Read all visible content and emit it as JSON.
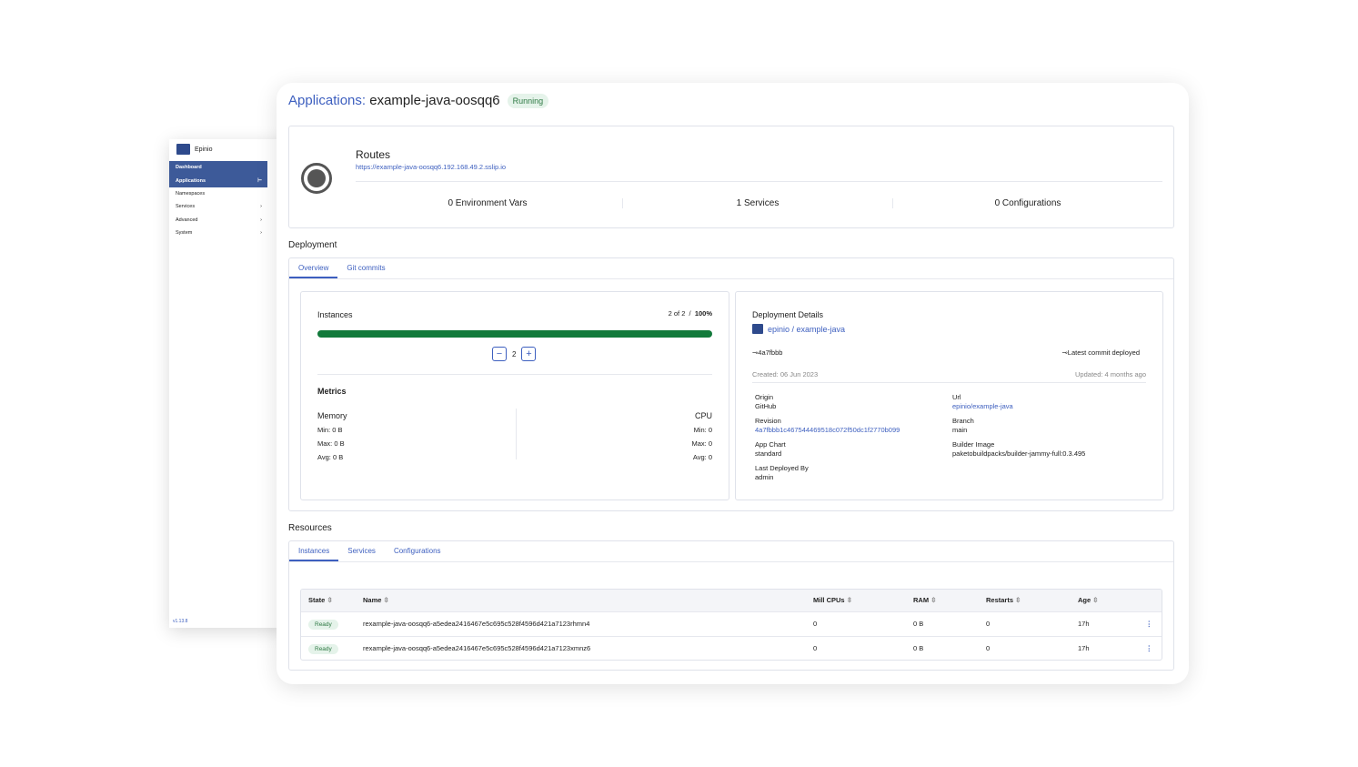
{
  "sidebar": {
    "brand": "Epinio",
    "items": [
      {
        "label": "Dashboard",
        "arrow": ""
      },
      {
        "label": "Applications",
        "arrow": "⊢"
      },
      {
        "label": "Namespaces",
        "arrow": ""
      },
      {
        "label": "Services",
        "arrow": "›"
      },
      {
        "label": "Advanced",
        "arrow": "›"
      },
      {
        "label": "System",
        "arrow": "›"
      }
    ],
    "version": "v1.13.8"
  },
  "header": {
    "crumb": "Applications:",
    "app": "example-java-oosqq6",
    "status": "Running"
  },
  "routes": {
    "title": "Routes",
    "url": "https://example-java-oosqq6.192.168.49.2.sslip.io",
    "stats": [
      "0 Environment Vars",
      "1 Services",
      "0 Configurations"
    ]
  },
  "deployment": {
    "title": "Deployment",
    "tabs": [
      "Overview",
      "Git commits"
    ],
    "instances": {
      "label": "Instances",
      "count": "2 of 2",
      "separator": "/",
      "percent": "100%",
      "progress": 1.0,
      "value": "2",
      "minus": "−",
      "plus": "+"
    },
    "metrics": {
      "title": "Metrics",
      "memory": {
        "label": "Memory",
        "min": "Min: 0 B",
        "max": "Max: 0 B",
        "avg": "Avg: 0 B"
      },
      "cpu": {
        "label": "CPU",
        "min": "Min: 0",
        "max": "Max: 0",
        "avg": "Avg: 0"
      }
    },
    "details": {
      "title": "Deployment Details",
      "repo": "epinio / example-java",
      "commit": "4a7fbbb",
      "commit_note": "Latest commit deployed",
      "created": "Created: 06 Jun 2023",
      "updated": "Updated: 4 months ago",
      "fields": [
        {
          "label": "Origin",
          "value": "GitHub",
          "link": false
        },
        {
          "label": "Url",
          "value": "epinio/example-java",
          "link": true
        },
        {
          "label": "Revision",
          "value": "4a7fbbb1c467544469518c072f50dc1f2770b099",
          "link": true
        },
        {
          "label": "Branch",
          "value": "main",
          "link": false
        },
        {
          "label": "App Chart",
          "value": "standard",
          "link": false
        },
        {
          "label": "Builder Image",
          "value": "paketobuildpacks/builder-jammy-full:0.3.495",
          "link": false
        },
        {
          "label": "Last Deployed By",
          "value": "admin",
          "link": false
        }
      ]
    }
  },
  "resources": {
    "title": "Resources",
    "tabs": [
      "Instances",
      "Services",
      "Configurations"
    ],
    "columns": [
      "State",
      "Name",
      "Mill CPUs",
      "RAM",
      "Restarts",
      "Age"
    ],
    "rows": [
      {
        "state": "Ready",
        "name": "rexample-java-oosqq6-a5edea2416467e5c695c528f4596d421a7123rhmn4",
        "cpu": "0",
        "ram": "0 B",
        "restarts": "0",
        "age": "17h"
      },
      {
        "state": "Ready",
        "name": "rexample-java-oosqq6-a5edea2416467e5c695c528f4596d421a7123xmnz6",
        "cpu": "0",
        "ram": "0 B",
        "restarts": "0",
        "age": "17h"
      }
    ]
  },
  "colors": {
    "accent": "#3d5fbf",
    "success": "#127a3b",
    "sidebar_selected": "#3d5a99"
  }
}
